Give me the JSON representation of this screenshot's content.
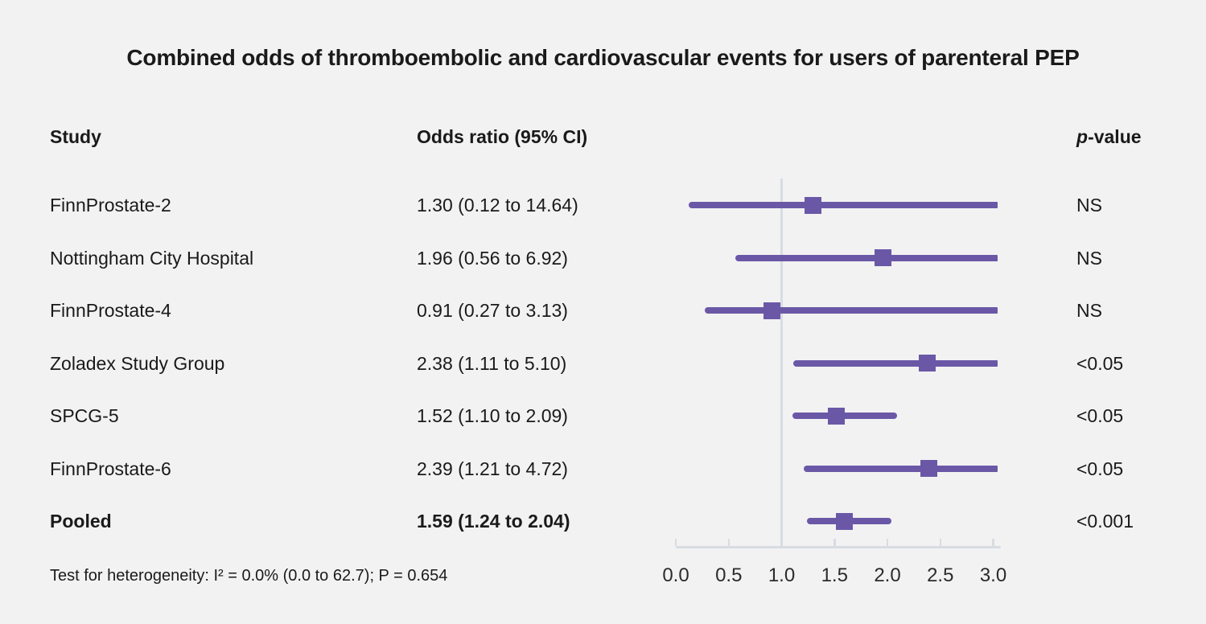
{
  "title": "Combined odds of thromboembolic and cardiovascular events for users of parenteral PEP",
  "columns": {
    "study": "Study",
    "odds_ratio": "Odds ratio (95% CI)",
    "p_italic": "p",
    "p_rest": "-value"
  },
  "footer": "Test for heterogeneity: I² = 0.0% (0.0 to 62.7); P = 0.654",
  "colors": {
    "accent_purple": "#6a58a7",
    "axis_gray": "#d8dce2",
    "background": "#f2f2f2",
    "text": "#1a1a1a"
  },
  "chart_data": {
    "type": "forest",
    "title": "Combined odds of thromboembolic and cardiovascular events for users of parenteral PEP",
    "x_axis": {
      "min": 0.0,
      "max": 3.0,
      "tick_labels": [
        "0.0",
        "0.5",
        "1.0",
        "1.5",
        "2.0",
        "2.5",
        "3.0"
      ],
      "reference_line": 1.0
    },
    "rows": [
      {
        "study": "FinnProstate-2",
        "estimate": 1.3,
        "ci_lower": 0.12,
        "ci_upper": 14.64,
        "or_label": "1.30 (0.12 to 14.64)",
        "p_value": "NS",
        "bold": false
      },
      {
        "study": "Nottingham City Hospital",
        "estimate": 1.96,
        "ci_lower": 0.56,
        "ci_upper": 6.92,
        "or_label": "1.96 (0.56 to 6.92)",
        "p_value": "NS",
        "bold": false
      },
      {
        "study": "FinnProstate-4",
        "estimate": 0.91,
        "ci_lower": 0.27,
        "ci_upper": 3.13,
        "or_label": "0.91 (0.27 to 3.13)",
        "p_value": "NS",
        "bold": false
      },
      {
        "study": "Zoladex Study Group",
        "estimate": 2.38,
        "ci_lower": 1.11,
        "ci_upper": 5.1,
        "or_label": "2.38 (1.11 to 5.10)",
        "p_value": "<0.05",
        "bold": false
      },
      {
        "study": "SPCG-5",
        "estimate": 1.52,
        "ci_lower": 1.1,
        "ci_upper": 2.09,
        "or_label": "1.52 (1.10 to 2.09)",
        "p_value": "<0.05",
        "bold": false
      },
      {
        "study": "FinnProstate-6",
        "estimate": 2.39,
        "ci_lower": 1.21,
        "ci_upper": 4.72,
        "or_label": "2.39 (1.21 to 4.72)",
        "p_value": "<0.05",
        "bold": false
      },
      {
        "study": "Pooled",
        "estimate": 1.59,
        "ci_lower": 1.24,
        "ci_upper": 2.04,
        "or_label": "1.59 (1.24 to 2.04)",
        "p_value": "<0.001",
        "bold": true
      }
    ]
  }
}
